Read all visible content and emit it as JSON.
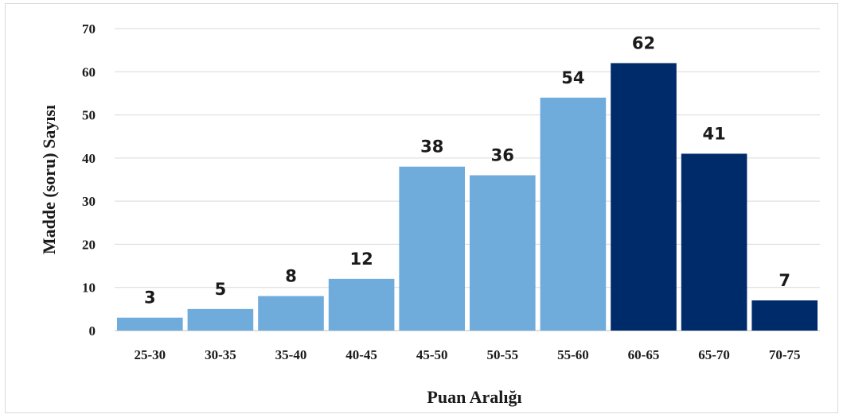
{
  "chart_data": {
    "type": "bar",
    "title": "",
    "xlabel": "Puan Aralığı",
    "ylabel": "Madde (soru) Sayısı",
    "ylim": [
      0,
      70
    ],
    "yticks": [
      0,
      10,
      20,
      30,
      40,
      50,
      60,
      70
    ],
    "categories": [
      "25-30",
      "30-35",
      "35-40",
      "40-45",
      "45-50",
      "50-55",
      "55-60",
      "60-65",
      "65-70",
      "70-75"
    ],
    "values": [
      3,
      5,
      8,
      12,
      38,
      36,
      54,
      62,
      41,
      7
    ],
    "bar_colors": [
      "#6fabdb",
      "#6fabdb",
      "#6fabdb",
      "#6fabdb",
      "#6fabdb",
      "#6fabdb",
      "#6fabdb",
      "#002b6b",
      "#002b6b",
      "#002b6b"
    ],
    "grid": true,
    "legend": "none"
  }
}
